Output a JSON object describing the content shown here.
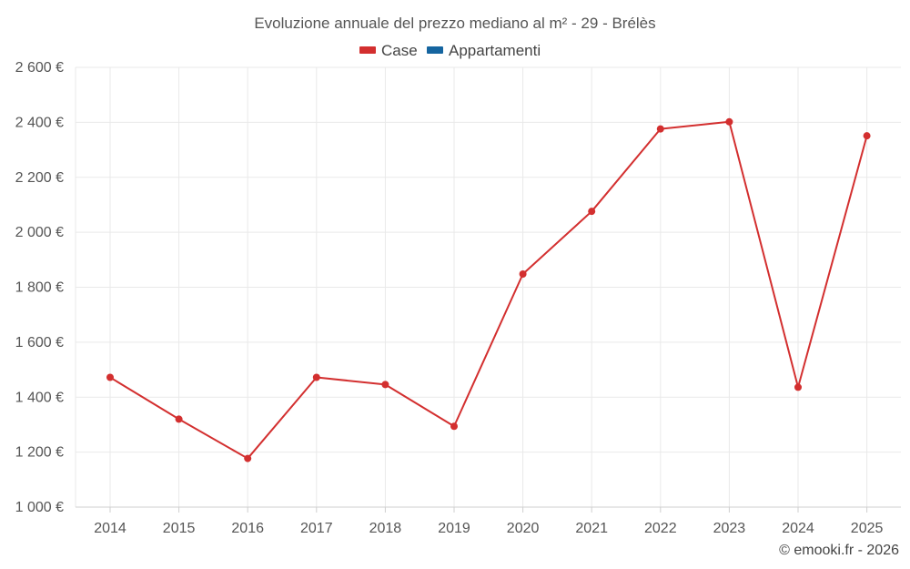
{
  "chart_data": {
    "type": "line",
    "title": "Evoluzione annuale del prezzo mediano al m² - 29 - Brélès",
    "categories": [
      "2014",
      "2015",
      "2016",
      "2017",
      "2018",
      "2019",
      "2020",
      "2021",
      "2022",
      "2023",
      "2024",
      "2025"
    ],
    "series": [
      {
        "name": "Case",
        "color": "#d32f2f",
        "values": [
          1472,
          1320,
          1177,
          1472,
          1446,
          1294,
          1848,
          2076,
          2376,
          2402,
          1436,
          2351
        ]
      },
      {
        "name": "Appartamenti",
        "color": "#1565a0",
        "values": [
          null,
          null,
          null,
          null,
          null,
          null,
          null,
          null,
          null,
          null,
          null,
          null
        ]
      }
    ],
    "y_ticks": [
      "1 000 €",
      "1 200 €",
      "1 400 €",
      "1 600 €",
      "1 800 €",
      "2 000 €",
      "2 200 €",
      "2 400 €",
      "2 600 €"
    ],
    "ylim": [
      1000,
      2600
    ],
    "legend_position": "top-center",
    "grid": true
  },
  "credit": "© emooki.fr - 2026"
}
